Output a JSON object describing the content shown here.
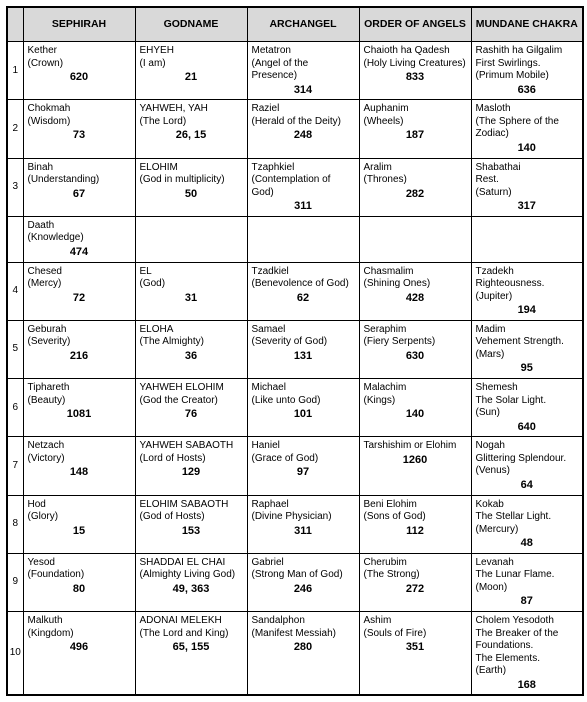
{
  "columns": [
    "SEPHIRAH",
    "GODNAME",
    "ARCHANGEL",
    "ORDER OF ANGELS",
    "MUNDANE CHAKRA"
  ],
  "rows": [
    {
      "n": "1",
      "cells": [
        {
          "name": "Kether",
          "desc": "(Crown)",
          "num": "620"
        },
        {
          "name": "EHYEH",
          "desc": "(I am)",
          "num": "21"
        },
        {
          "name": "Metatron",
          "desc": "(Angel of the Presence)",
          "num": "314"
        },
        {
          "name": "Chaioth ha Qadesh",
          "desc": "(Holy Living Creatures)",
          "num": "833"
        },
        {
          "name": "Rashith ha Gilgalim",
          "desc": "First Swirlings.\n(Primum Mobile)",
          "num": "636"
        }
      ]
    },
    {
      "n": "2",
      "cells": [
        {
          "name": "Chokmah",
          "desc": "(Wisdom)",
          "num": "73"
        },
        {
          "name": "YAHWEH, YAH",
          "desc": "(The Lord)",
          "num": "26, 15"
        },
        {
          "name": "Raziel",
          "desc": "(Herald of the Deity)",
          "num": "248"
        },
        {
          "name": "Auphanim",
          "desc": "(Wheels)",
          "num": "187"
        },
        {
          "name": "Masloth",
          "desc": "(The Sphere of the Zodiac)",
          "num": "140"
        }
      ]
    },
    {
      "n": "3",
      "cells": [
        {
          "name": "Binah",
          "desc": "(Understanding)",
          "num": "67"
        },
        {
          "name": "ELOHIM",
          "desc": "(God in multiplicity)",
          "num": "50"
        },
        {
          "name": "Tzaphkiel",
          "desc": "(Contemplation of God)",
          "num": "311"
        },
        {
          "name": "Aralim",
          "desc": "(Thrones)",
          "num": "282"
        },
        {
          "name": "Shabathai",
          "desc": "Rest.\n(Saturn)",
          "num": "317"
        }
      ]
    },
    {
      "n": "",
      "cells": [
        {
          "name": "Daath",
          "desc": "(Knowledge)",
          "num": "474"
        },
        {
          "name": "",
          "desc": "",
          "num": ""
        },
        {
          "name": "",
          "desc": "",
          "num": ""
        },
        {
          "name": "",
          "desc": "",
          "num": ""
        },
        {
          "name": "",
          "desc": "",
          "num": ""
        }
      ]
    },
    {
      "n": "4",
      "cells": [
        {
          "name": "Chesed",
          "desc": "(Mercy)",
          "num": "72"
        },
        {
          "name": "EL",
          "desc": "(God)",
          "num": "31"
        },
        {
          "name": "Tzadkiel",
          "desc": "(Benevolence of God)",
          "num": "62"
        },
        {
          "name": "Chasmalim",
          "desc": "(Shining Ones)",
          "num": "428"
        },
        {
          "name": "Tzadekh",
          "desc": "Righteousness.\n(Jupiter)",
          "num": "194"
        }
      ]
    },
    {
      "n": "5",
      "cells": [
        {
          "name": "Geburah",
          "desc": "(Severity)",
          "num": "216"
        },
        {
          "name": "ELOHA",
          "desc": "(The Almighty)",
          "num": "36"
        },
        {
          "name": "Samael",
          "desc": "(Severity of God)",
          "num": "131"
        },
        {
          "name": "Seraphim",
          "desc": "(Fiery Serpents)",
          "num": "630"
        },
        {
          "name": "Madim",
          "desc": "Vehement Strength.\n(Mars)",
          "num": "95"
        }
      ]
    },
    {
      "n": "6",
      "cells": [
        {
          "name": "Tiphareth",
          "desc": "(Beauty)",
          "num": "1081"
        },
        {
          "name": "YAHWEH ELOHIM",
          "desc": "(God the Creator)",
          "num": "76"
        },
        {
          "name": "Michael",
          "desc": "(Like unto God)",
          "num": "101"
        },
        {
          "name": "Malachim",
          "desc": "(Kings)",
          "num": "140"
        },
        {
          "name": "Shemesh",
          "desc": "The Solar Light.\n(Sun)",
          "num": "640"
        }
      ]
    },
    {
      "n": "7",
      "cells": [
        {
          "name": "Netzach",
          "desc": "(Victory)",
          "num": "148"
        },
        {
          "name": "YAHWEH SABAOTH",
          "desc": "(Lord of Hosts)",
          "num": "129"
        },
        {
          "name": "Haniel",
          "desc": "(Grace of God)",
          "num": "97"
        },
        {
          "name": "Tarshishim or Elohim",
          "desc": "",
          "num": "1260"
        },
        {
          "name": "Nogah",
          "desc": "Glittering Splendour.\n(Venus)",
          "num": "64"
        }
      ]
    },
    {
      "n": "8",
      "cells": [
        {
          "name": "Hod",
          "desc": "(Glory)",
          "num": "15"
        },
        {
          "name": "ELOHIM SABAOTH",
          "desc": "(God of Hosts)",
          "num": "153"
        },
        {
          "name": "Raphael",
          "desc": "(Divine Physician)",
          "num": "311"
        },
        {
          "name": "Beni Elohim",
          "desc": "(Sons of God)",
          "num": "112"
        },
        {
          "name": "Kokab",
          "desc": "The Stellar Light.\n(Mercury)",
          "num": "48"
        }
      ]
    },
    {
      "n": "9",
      "cells": [
        {
          "name": "Yesod",
          "desc": "(Foundation)",
          "num": "80"
        },
        {
          "name": "SHADDAI EL CHAI",
          "desc": "(Almighty Living God)",
          "num": "49, 363"
        },
        {
          "name": "Gabriel",
          "desc": "(Strong Man of God)",
          "num": "246"
        },
        {
          "name": "Cherubim",
          "desc": "(The Strong)",
          "num": "272"
        },
        {
          "name": "Levanah",
          "desc": "The Lunar Flame.\n(Moon)",
          "num": "87"
        }
      ]
    },
    {
      "n": "10",
      "cells": [
        {
          "name": "Malkuth",
          "desc": "(Kingdom)",
          "num": "496"
        },
        {
          "name": "ADONAI MELEKH",
          "desc": "(The Lord and King)",
          "num": "65, 155"
        },
        {
          "name": "Sandalphon",
          "desc": "(Manifest Messiah)",
          "num": "280"
        },
        {
          "name": "Ashim",
          "desc": "(Souls of Fire)",
          "num": "351"
        },
        {
          "name": "Cholem Yesodoth",
          "desc": "The Breaker of the Foundations.\nThe Elements.\n(Earth)",
          "num": "168"
        }
      ]
    }
  ]
}
